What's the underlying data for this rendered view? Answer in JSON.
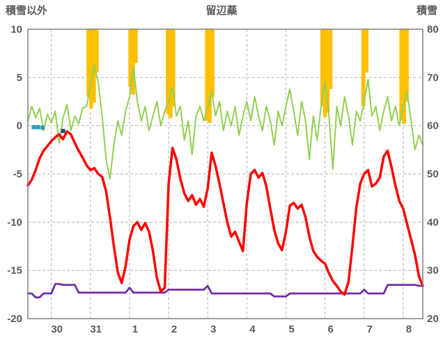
{
  "header": {
    "left_title": "積雪以外",
    "center_title": "留辺蘂",
    "right_title": "積雪"
  },
  "chart_data": {
    "type": "line",
    "title": "留辺蘂",
    "left_axis_title": "積雪以外",
    "right_axis_title": "積雪",
    "x": {
      "start": -0.6,
      "step": 0.1,
      "count": 102,
      "gridline_positions": [
        0,
        1,
        2,
        3,
        4,
        5,
        6,
        7,
        8,
        9
      ],
      "tick_labels": [
        "30",
        "31",
        "1",
        "2",
        "3",
        "4",
        "5",
        "6",
        "7",
        "8"
      ]
    },
    "left_axis": {
      "min": -20,
      "max": 10,
      "ticks": [
        10,
        5,
        0,
        -5,
        -10,
        -15,
        -20
      ]
    },
    "right_axis": {
      "min": 20,
      "max": 80,
      "ticks": [
        80,
        70,
        60,
        50,
        40,
        30,
        20
      ]
    },
    "grid": {
      "color": "#B3B3B3",
      "dash": "4 3",
      "border_color": "#808080"
    },
    "series": [
      {
        "name": "green-series",
        "color": "#92D050",
        "width": 2,
        "values": [
          0.5,
          2.0,
          0.8,
          1.8,
          -0.5,
          1.2,
          0.3,
          1.5,
          -1.8,
          0.8,
          2.2,
          -0.5,
          1.0,
          0.2,
          1.8,
          2.0,
          4.0,
          6.3,
          4.5,
          1.0,
          -3.5,
          -5.5,
          -2.0,
          0.5,
          -1.0,
          1.5,
          3.0,
          6.0,
          2.5,
          0.5,
          2.0,
          -0.5,
          1.0,
          2.5,
          0.0,
          1.5,
          2.5,
          4.0,
          1.0,
          2.0,
          -1.5,
          0.5,
          -3.0,
          1.0,
          2.0,
          0.5,
          2.0,
          3.5,
          1.0,
          2.5,
          -0.5,
          1.5,
          0.0,
          2.0,
          -1.0,
          1.0,
          2.5,
          0.5,
          3.0,
          1.0,
          -0.5,
          2.0,
          0.5,
          -2.0,
          1.5,
          0.0,
          2.0,
          3.8,
          1.5,
          -1.0,
          2.5,
          0.5,
          -3.5,
          1.0,
          -1.5,
          2.0,
          4.5,
          1.0,
          -4.5,
          2.0,
          0.0,
          3.0,
          1.0,
          -2.0,
          1.5,
          0.5,
          2.5,
          4.8,
          1.0,
          2.0,
          -0.5,
          1.5,
          3.0,
          0.5,
          2.0,
          0.0,
          2.0,
          3.5,
          0.5,
          -2.5,
          -1.0,
          -2.0
        ]
      },
      {
        "name": "purple-series",
        "color": "#7030A0",
        "width": 2.8,
        "values": [
          -17.4,
          -17.4,
          -17.8,
          -17.8,
          -17.4,
          -17.4,
          -17.4,
          -16.4,
          -16.4,
          -16.5,
          -16.5,
          -16.5,
          -16.5,
          -17.3,
          -17.3,
          -17.3,
          -17.3,
          -17.3,
          -17.3,
          -17.3,
          -17.3,
          -17.3,
          -17.3,
          -17.3,
          -17.3,
          -17.3,
          -16.8,
          -17.3,
          -17.3,
          -17.3,
          -17.3,
          -17.3,
          -17.3,
          -17.3,
          -17.3,
          -17.3,
          -17.0,
          -17.0,
          -17.0,
          -17.0,
          -17.0,
          -17.0,
          -17.0,
          -17.0,
          -17.0,
          -17.0,
          -16.6,
          -17.4,
          -17.4,
          -17.4,
          -17.4,
          -17.4,
          -17.4,
          -17.4,
          -17.4,
          -17.4,
          -17.4,
          -17.4,
          -17.4,
          -17.4,
          -17.4,
          -17.4,
          -17.4,
          -17.7,
          -17.7,
          -17.7,
          -17.7,
          -17.4,
          -17.4,
          -17.4,
          -17.4,
          -17.4,
          -17.4,
          -17.4,
          -17.4,
          -17.4,
          -17.4,
          -17.4,
          -17.4,
          -17.4,
          -17.4,
          -17.4,
          -17.4,
          -17.4,
          -17.4,
          -17.4,
          -17.0,
          -17.4,
          -17.4,
          -17.4,
          -17.4,
          -17.4,
          -16.5,
          -16.5,
          -16.5,
          -16.5,
          -16.5,
          -16.5,
          -16.5,
          -16.5,
          -16.6,
          -16.6
        ]
      },
      {
        "name": "red-series",
        "color": "#FF0000",
        "width": 3.5,
        "values": [
          -6.2,
          -5.6,
          -4.6,
          -3.4,
          -2.6,
          -2.1,
          -1.6,
          -1.2,
          -0.9,
          -1.4,
          -0.6,
          -0.9,
          -1.8,
          -2.6,
          -3.3,
          -4.1,
          -4.6,
          -4.4,
          -5.0,
          -5.3,
          -6.8,
          -9.5,
          -12.5,
          -15.2,
          -16.3,
          -14.6,
          -11.8,
          -10.4,
          -10.0,
          -10.8,
          -10.1,
          -11.0,
          -13.0,
          -15.8,
          -17.2,
          -16.8,
          -6.0,
          -2.3,
          -3.5,
          -5.5,
          -7.0,
          -7.8,
          -7.2,
          -8.2,
          -7.6,
          -8.4,
          -6.5,
          -2.8,
          -4.2,
          -6.0,
          -8.0,
          -10.0,
          -11.5,
          -11.0,
          -12.0,
          -13.0,
          -8.0,
          -5.0,
          -4.6,
          -5.4,
          -4.9,
          -6.3,
          -8.6,
          -10.8,
          -12.2,
          -12.9,
          -11.0,
          -8.3,
          -8.0,
          -8.6,
          -8.2,
          -9.5,
          -11.5,
          -13.0,
          -13.6,
          -14.0,
          -14.3,
          -15.3,
          -16.1,
          -16.6,
          -17.2,
          -17.5,
          -16.2,
          -12.5,
          -8.5,
          -6.0,
          -5.0,
          -4.6,
          -6.3,
          -6.0,
          -5.4,
          -3.2,
          -2.6,
          -4.3,
          -6.2,
          -7.8,
          -8.6,
          -10.2,
          -11.8,
          -13.4,
          -15.6,
          -16.6
        ]
      }
    ],
    "bars": {
      "name": "orange-bars",
      "color": "#FFC000",
      "top": 10,
      "width_days": 0.1,
      "items": [
        {
          "x": 0.95,
          "to": 3.0
        },
        {
          "x": 1.02,
          "to": 1.8
        },
        {
          "x": 1.09,
          "to": 2.4
        },
        {
          "x": 1.16,
          "to": 5.5
        },
        {
          "x": 2.02,
          "to": 4.0
        },
        {
          "x": 2.09,
          "to": 3.2
        },
        {
          "x": 2.16,
          "to": 6.5
        },
        {
          "x": 2.98,
          "to": 1.2
        },
        {
          "x": 3.05,
          "to": 0.8
        },
        {
          "x": 3.12,
          "to": 2.0
        },
        {
          "x": 3.98,
          "to": 0.5
        },
        {
          "x": 4.05,
          "to": 0.3
        },
        {
          "x": 4.12,
          "to": 3.0
        },
        {
          "x": 6.93,
          "to": 2.0
        },
        {
          "x": 7.0,
          "to": 0.9
        },
        {
          "x": 7.07,
          "to": 1.4
        },
        {
          "x": 7.14,
          "to": 3.8
        },
        {
          "x": 7.98,
          "to": 2.0
        },
        {
          "x": 8.06,
          "to": 5.5
        },
        {
          "x": 8.95,
          "to": 0.6
        },
        {
          "x": 9.02,
          "to": 0.2
        },
        {
          "x": 9.09,
          "to": 2.5
        }
      ]
    },
    "dots": [
      {
        "x": -0.45,
        "y": -0.15,
        "color": "#2E9BB0"
      },
      {
        "x": -0.34,
        "y": -0.15,
        "color": "#2E9BB0"
      },
      {
        "x": -0.22,
        "y": -0.2,
        "color": "#2E9BB0"
      },
      {
        "x": 0.3,
        "y": -0.55,
        "color": "#1F4E79"
      }
    ]
  }
}
